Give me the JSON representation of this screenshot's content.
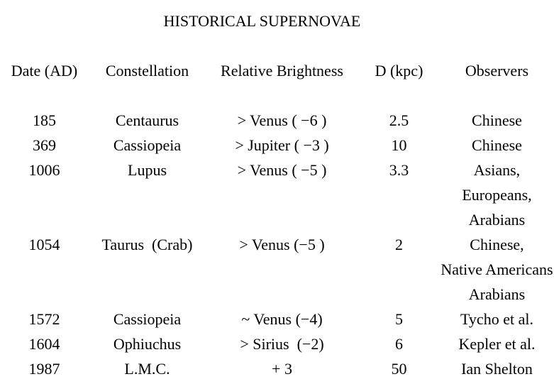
{
  "page": {
    "background_color": "#ffffff",
    "text_color": "#000000",
    "title": "HISTORICAL SUPERNOVAE"
  },
  "table": {
    "columns": [
      "Date (AD)",
      "Constellation",
      "Relative Brightness",
      "D (kpc)",
      "Observers"
    ],
    "rows": [
      {
        "date": "185",
        "constellation": "Centaurus",
        "brightness": "> Venus ( −6 )",
        "d_kpc": "2.5",
        "observers": [
          "Chinese"
        ]
      },
      {
        "date": "369",
        "constellation": "Cassiopeia",
        "brightness": "> Jupiter ( −3 )",
        "d_kpc": "10",
        "observers": [
          "Chinese"
        ]
      },
      {
        "date": "1006",
        "constellation": "Lupus",
        "brightness": "> Venus ( −5 )",
        "d_kpc": "3.3",
        "observers": [
          "Asians,",
          "Europeans,",
          "Arabians"
        ]
      },
      {
        "date": "1054",
        "constellation": "Taurus  (Crab)",
        "brightness": "> Venus (−5 )",
        "d_kpc": "2",
        "observers": [
          "Chinese,",
          "Native Americans",
          "Arabians"
        ]
      },
      {
        "date": "1572",
        "constellation": "Cassiopeia",
        "brightness": "~ Venus (−4)",
        "d_kpc": "5",
        "observers": [
          "Tycho et al."
        ]
      },
      {
        "date": "1604",
        "constellation": "Ophiuchus",
        "brightness": "> Sirius  (−2)",
        "d_kpc": "6",
        "observers": [
          "Kepler et al."
        ]
      },
      {
        "date": "1987",
        "constellation": "L.M.C.",
        "brightness": "+ 3",
        "d_kpc": "50",
        "observers": [
          "Ian Shelton"
        ]
      }
    ]
  }
}
